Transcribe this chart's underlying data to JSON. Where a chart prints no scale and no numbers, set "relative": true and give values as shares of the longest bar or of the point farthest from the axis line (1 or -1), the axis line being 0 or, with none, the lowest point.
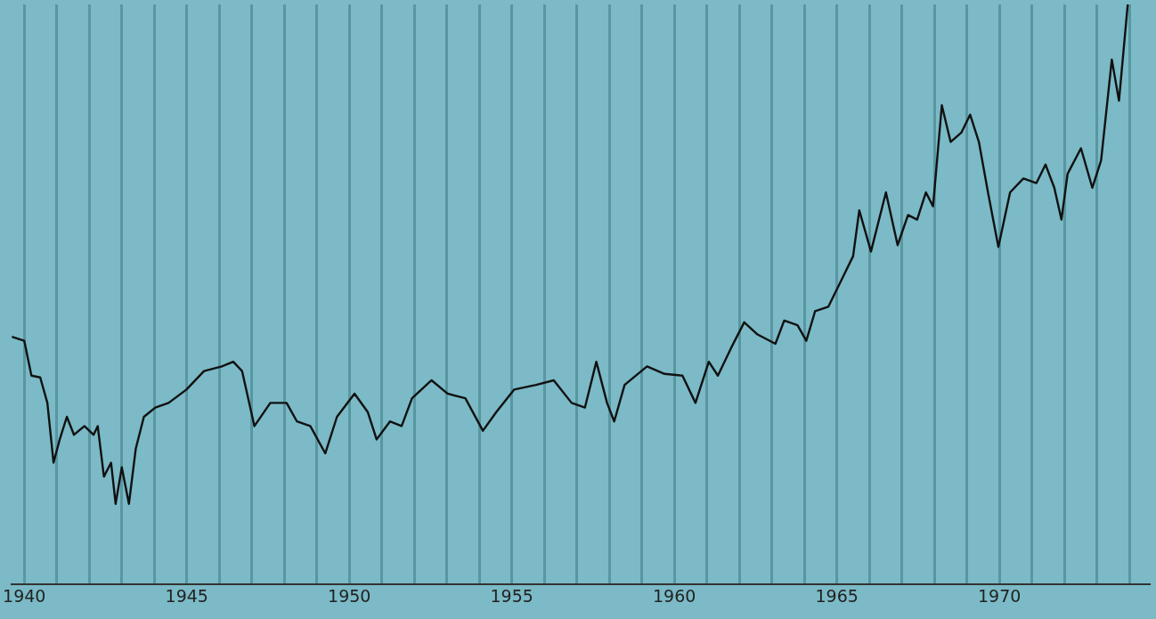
{
  "chart_data": {
    "type": "line",
    "relative": true,
    "grid": "x",
    "legend": false,
    "marker": "none",
    "line_style": "solid",
    "xlim": [
      1939.6,
      1974.6
    ],
    "xticks": [
      1940,
      {
        "value": 1941,
        "label": null
      },
      {
        "value": 1942,
        "label": null
      },
      {
        "value": 1943,
        "label": null
      },
      {
        "value": 1944,
        "label": null
      },
      1945,
      {
        "value": 1946,
        "label": null
      },
      {
        "value": 1947,
        "label": null
      },
      {
        "value": 1948,
        "label": null
      },
      {
        "value": 1949,
        "label": null
      },
      1950,
      {
        "value": 1951,
        "label": null
      },
      {
        "value": 1952,
        "label": null
      },
      {
        "value": 1953,
        "label": null
      },
      {
        "value": 1954,
        "label": null
      },
      1955,
      {
        "value": 1956,
        "label": null
      },
      {
        "value": 1957,
        "label": null
      },
      {
        "value": 1958,
        "label": null
      },
      {
        "value": 1959,
        "label": null
      },
      1960,
      {
        "value": 1961,
        "label": null
      },
      {
        "value": 1962,
        "label": null
      },
      {
        "value": 1963,
        "label": null
      },
      {
        "value": 1964,
        "label": null
      },
      1965,
      {
        "value": 1966,
        "label": null
      },
      {
        "value": 1967,
        "label": null
      },
      {
        "value": 1968,
        "label": null
      },
      {
        "value": 1969,
        "label": null
      },
      1970,
      {
        "value": 1971,
        "label": null
      },
      {
        "value": 1972,
        "label": null
      },
      {
        "value": 1973,
        "label": null
      },
      {
        "value": 1974,
        "label": null
      }
    ],
    "series": [
      {
        "color": "#111111",
        "x": [
          1939.62,
          1940.0,
          1940.22,
          1940.49,
          1940.71,
          1940.9,
          1941.09,
          1941.31,
          1941.53,
          1941.85,
          1942.13,
          1942.26,
          1942.45,
          1942.67,
          1942.81,
          1943.0,
          1943.22,
          1943.43,
          1943.68,
          1944.03,
          1944.44,
          1944.99,
          1945.53,
          1946.08,
          1946.43,
          1946.7,
          1947.08,
          1947.57,
          1948.07,
          1948.39,
          1948.8,
          1949.26,
          1949.62,
          1950.16,
          1950.57,
          1950.84,
          1951.25,
          1951.61,
          1951.93,
          1952.53,
          1953.02,
          1953.57,
          1954.11,
          1954.52,
          1955.07,
          1955.75,
          1956.29,
          1956.84,
          1957.25,
          1957.6,
          1957.93,
          1958.15,
          1958.47,
          1959.16,
          1959.7,
          1960.25,
          1960.65,
          1961.06,
          1961.34,
          1961.74,
          1962.15,
          1962.56,
          1963.11,
          1963.38,
          1963.79,
          1964.06,
          1964.33,
          1964.74,
          1965.15,
          1965.5,
          1965.69,
          1966.05,
          1966.51,
          1966.87,
          1967.19,
          1967.47,
          1967.74,
          1967.96,
          1968.23,
          1968.5,
          1968.83,
          1969.1,
          1969.37,
          1969.65,
          1969.97,
          1970.33,
          1970.74,
          1971.14,
          1971.42,
          1971.69,
          1971.91,
          1972.1,
          1972.51,
          1972.86,
          1973.13,
          1973.46,
          1973.68,
          1973.95
        ],
        "values": [
          0.427,
          0.42,
          0.36,
          0.357,
          0.313,
          0.21,
          0.25,
          0.289,
          0.258,
          0.273,
          0.258,
          0.273,
          0.186,
          0.21,
          0.139,
          0.202,
          0.139,
          0.234,
          0.289,
          0.305,
          0.313,
          0.336,
          0.368,
          0.376,
          0.384,
          0.368,
          0.273,
          0.313,
          0.313,
          0.281,
          0.273,
          0.226,
          0.289,
          0.329,
          0.297,
          0.25,
          0.281,
          0.273,
          0.321,
          0.352,
          0.329,
          0.321,
          0.265,
          0.297,
          0.336,
          0.344,
          0.352,
          0.313,
          0.305,
          0.384,
          0.313,
          0.281,
          0.344,
          0.376,
          0.363,
          0.36,
          0.313,
          0.384,
          0.36,
          0.407,
          0.452,
          0.431,
          0.415,
          0.455,
          0.447,
          0.42,
          0.471,
          0.479,
          0.526,
          0.566,
          0.645,
          0.574,
          0.676,
          0.585,
          0.637,
          0.629,
          0.676,
          0.652,
          0.826,
          0.763,
          0.779,
          0.81,
          0.763,
          0.676,
          0.582,
          0.676,
          0.7,
          0.692,
          0.724,
          0.684,
          0.629,
          0.708,
          0.752,
          0.684,
          0.731,
          0.905,
          0.834,
          1
        ]
      }
    ]
  }
}
